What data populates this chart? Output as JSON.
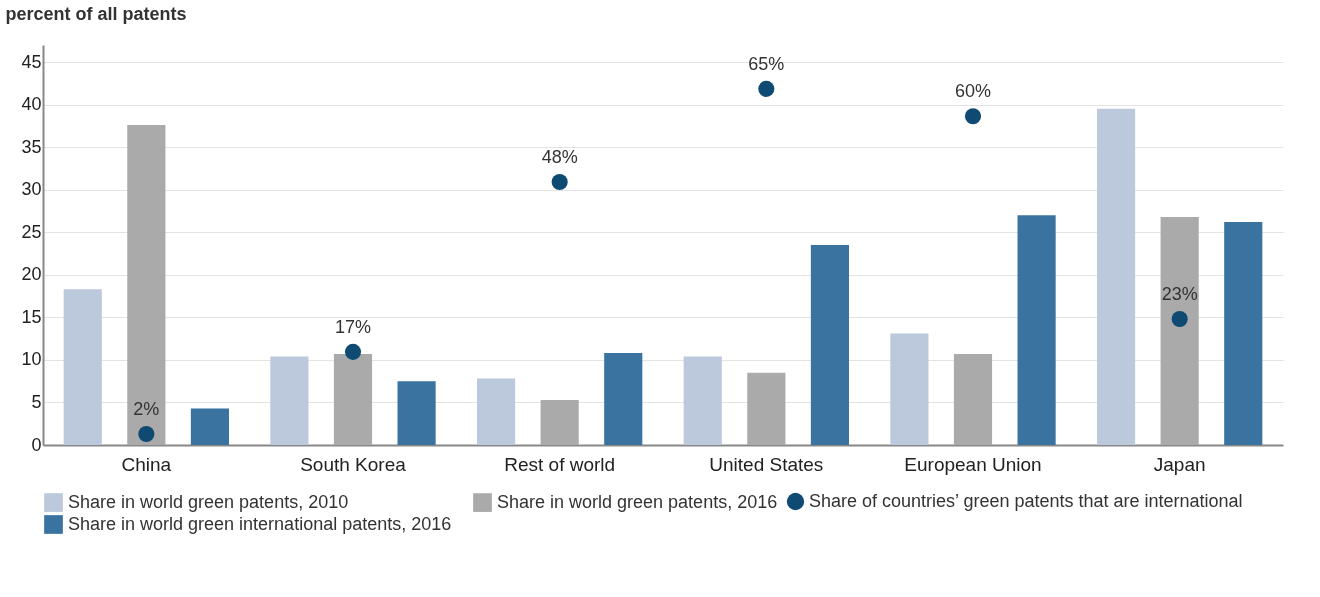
{
  "chart_data": {
    "type": "bar",
    "ylabel": "percent of all patents",
    "categories": [
      "China",
      "South Korea",
      "Rest of world",
      "United States",
      "European Union",
      "Japan"
    ],
    "series": [
      {
        "name": "Share in world green patents, 2010",
        "color": "#bcc8dc",
        "values": [
          18.3,
          10.4,
          7.8,
          10.4,
          13.1,
          39.5
        ]
      },
      {
        "name": "Share in world green patents, 2016",
        "color": "#aaaaaa",
        "values": [
          37.6,
          10.7,
          5.3,
          8.5,
          10.7,
          26.8
        ]
      },
      {
        "name": "Share in world green international patents, 2016",
        "color": "#3a73a0",
        "values": [
          4.3,
          7.5,
          10.8,
          23.5,
          27.0,
          26.2
        ]
      },
      {
        "name": "Share of countries’ green patents that are international",
        "type": "scatter",
        "color": "#0f4a72",
        "x": [
          "China",
          "South Korea",
          "Rest of world",
          "United States",
          "European Union",
          "Japan"
        ],
        "axis": "y2",
        "values": [
          2,
          17,
          48,
          65,
          60,
          23
        ],
        "value_labels": [
          "2%",
          "17%",
          "48%",
          "65%",
          "60%",
          "23%"
        ]
      }
    ],
    "ylim": [
      0,
      47
    ],
    "y2lim": [
      0,
      73
    ],
    "tick_labels": "y",
    "yticks": [
      0,
      5,
      10,
      15,
      20,
      25,
      30,
      35,
      40,
      45
    ],
    "grid": "y",
    "legend": "bottom",
    "marker": "circle"
  }
}
